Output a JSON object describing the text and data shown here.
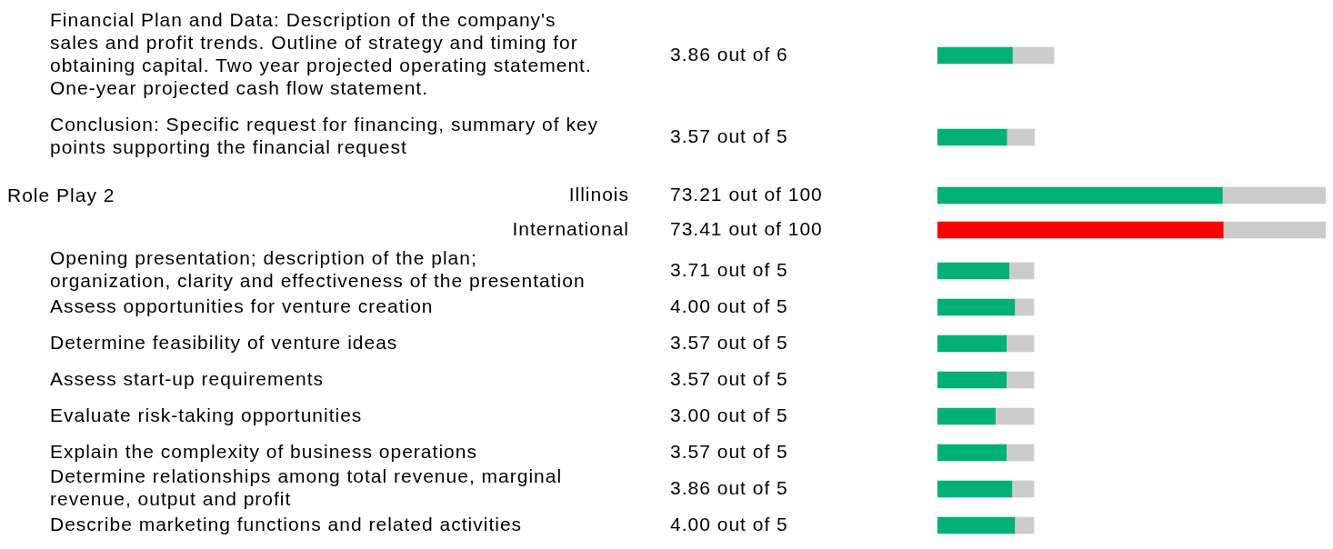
{
  "chart_data": [
    {
      "type": "bar",
      "orientation": "horizontal",
      "stacked": true,
      "categories": [
        "Financial Plan and Data: Description of the company's sales and profit trends. Outline of strategy and timing for obtaining capital. Two year projected operating statement. One-year projected cash flow statement.",
        "Conclusion: Specific request for financing, summary of key points supporting the financial request"
      ],
      "series": [
        {
          "color": "#00b074",
          "values": [
            3.86,
            3.57
          ],
          "value_labels": [
            "3.86 out of 6",
            "3.57 out of 5"
          ]
        },
        {
          "color": "#cccccc",
          "values": [
            2.14,
            1.43
          ]
        }
      ]
    },
    {
      "type": "bar",
      "orientation": "horizontal",
      "stacked": true,
      "ylabel": "Role Play 2",
      "categories": [
        "Illinois",
        "International"
      ],
      "series": [
        {
          "colors": [
            "#00b074",
            "#ff0000"
          ],
          "values": [
            73.21,
            73.41
          ],
          "value_labels": [
            "73.21 out of 100",
            "73.41 out of 100"
          ]
        },
        {
          "color": "#cccccc",
          "values": [
            26.79,
            26.59
          ]
        }
      ]
    },
    {
      "type": "bar",
      "orientation": "horizontal",
      "stacked": true,
      "categories": [
        "Opening presentation; description of the plan; organization, clarity and effectiveness of the presentation",
        "Assess opportunities for venture creation",
        "Determine feasibility of venture ideas",
        "Assess start-up requirements",
        "Evaluate risk-taking opportunities",
        "Explain the complexity of business operations",
        "Determine relationships among total revenue, marginal revenue, output and profit",
        "Describe marketing functions and related activities"
      ],
      "series": [
        {
          "color": "#00b074",
          "values": [
            3.71,
            4.0,
            3.57,
            3.57,
            3.0,
            3.57,
            3.86,
            4.0
          ],
          "value_labels": [
            "3.71 out of 5",
            "4.00 out of 5",
            "3.57 out of 5",
            "3.57 out of 5",
            "3.00 out of 5",
            "3.57 out of 5",
            "3.86 out of 5",
            "4.00 out of 5"
          ]
        },
        {
          "color": "#cccccc",
          "values": [
            1.29,
            1.0,
            1.43,
            1.43,
            2.0,
            1.43,
            1.14,
            1.0
          ]
        }
      ]
    }
  ]
}
